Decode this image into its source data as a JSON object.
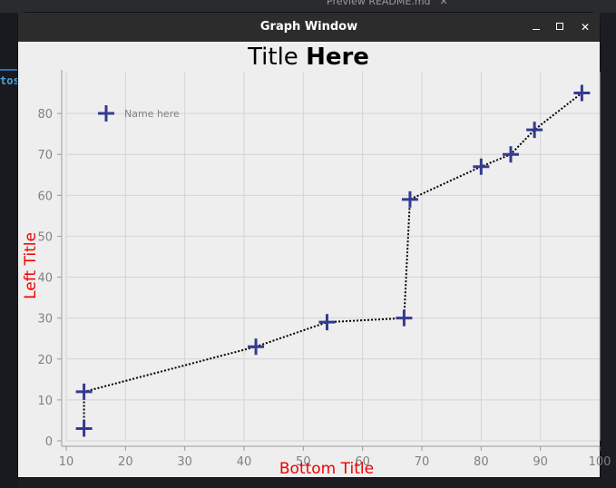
{
  "window": {
    "title": "Graph Window"
  },
  "background": {
    "tab_label": "Preview README.md",
    "code_fragment": "tos"
  },
  "chart_data": {
    "type": "scatter",
    "title_regular": "Title ",
    "title_bold": "Here",
    "xlabel": "Bottom Title",
    "ylabel": "Left Title",
    "xlim": [
      10,
      100
    ],
    "ylim": [
      0,
      88
    ],
    "xticks": [
      10,
      20,
      30,
      40,
      50,
      60,
      70,
      80,
      90,
      100
    ],
    "yticks": [
      0,
      10,
      20,
      30,
      40,
      50,
      60,
      70,
      80
    ],
    "grid": true,
    "legend_position": "top-left",
    "series": [
      {
        "name": "Name here",
        "marker": "plus",
        "marker_color": "#333b8f",
        "line_style": "dotted",
        "line_color": "#000000",
        "x": [
          13,
          13,
          42,
          54,
          67,
          68,
          80,
          85,
          89,
          97
        ],
        "y": [
          3,
          12,
          23,
          29,
          30,
          59,
          67,
          70,
          76,
          85
        ]
      }
    ],
    "label_color": "#ee0000",
    "tick_label_color": "#808080"
  }
}
